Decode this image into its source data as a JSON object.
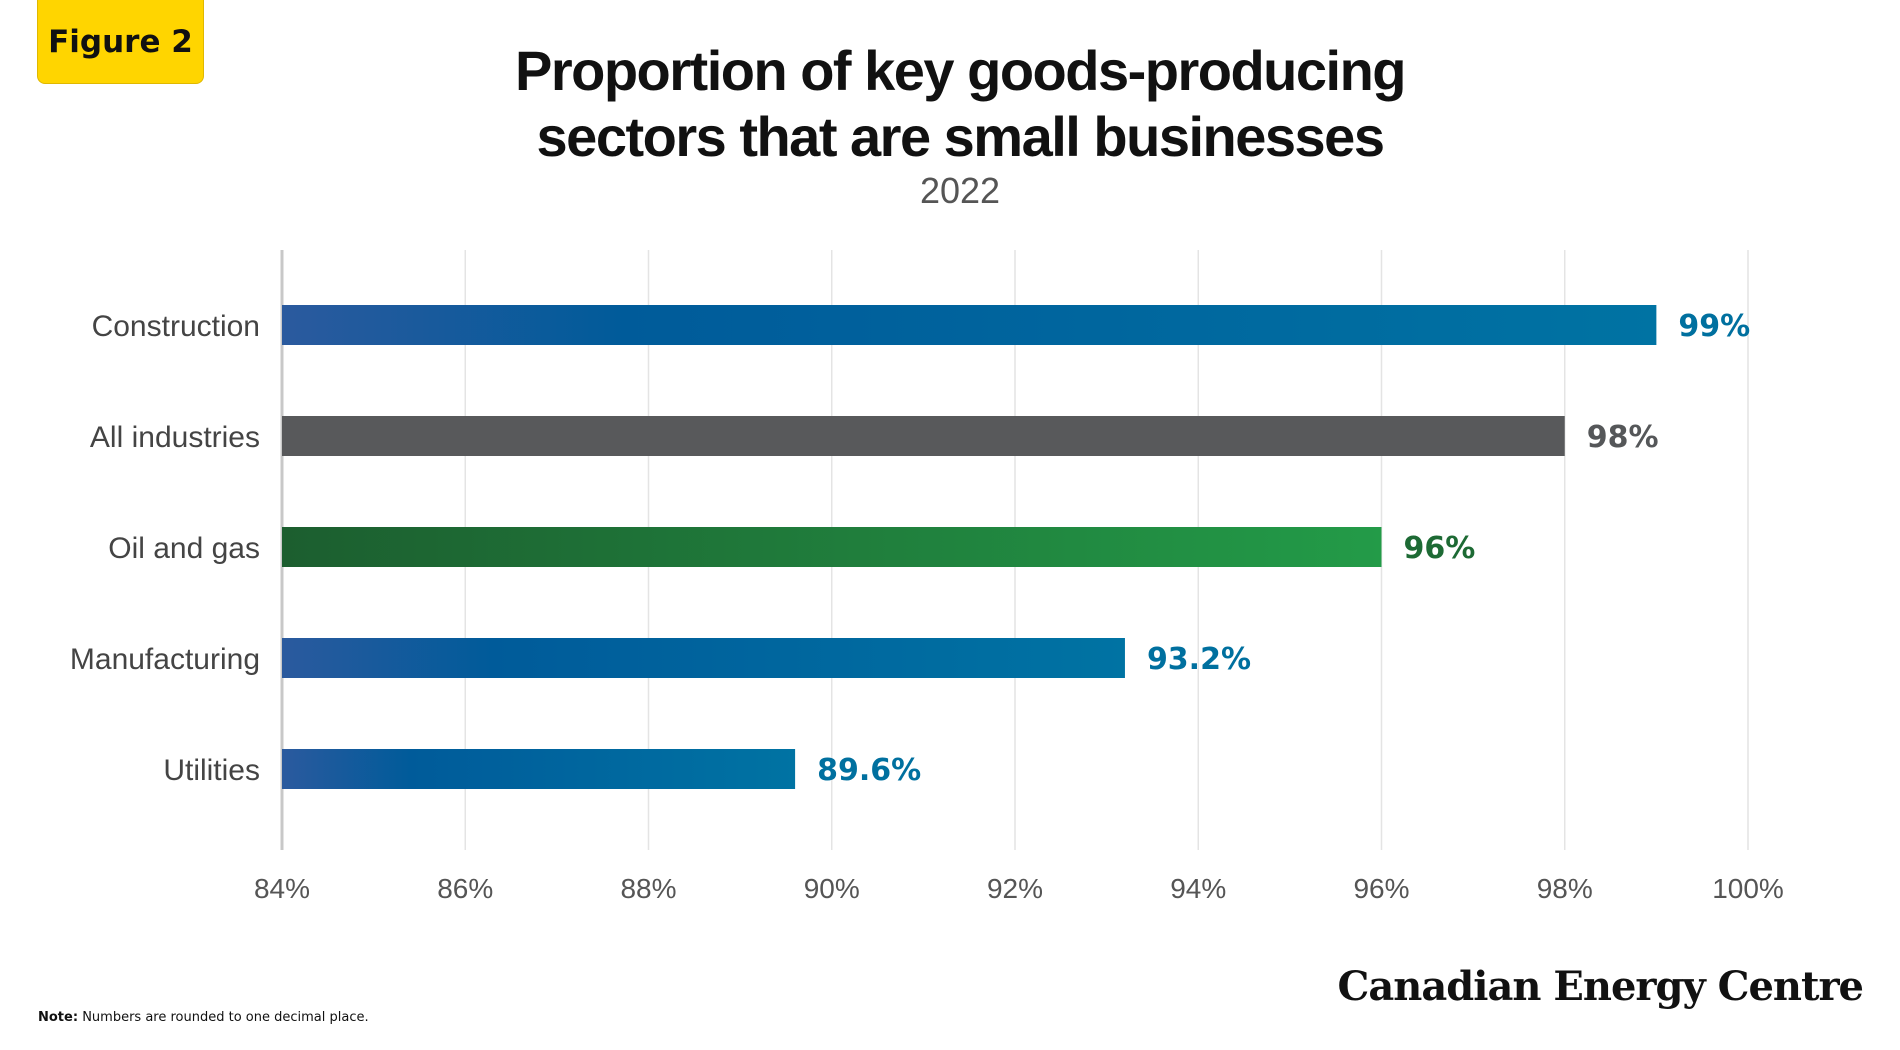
{
  "badge": "Figure 2",
  "title_line1": "Proportion of key goods-producing",
  "title_line2": "sectors that are small businesses",
  "subtitle": "2022",
  "note_label": "Note:",
  "note_text": "Numbers are rounded to one decimal place.",
  "brand": "Canadian Energy Centre",
  "chart_data": {
    "type": "bar",
    "orientation": "horizontal",
    "title": "Proportion of key goods-producing sectors that are small businesses",
    "subtitle": "2022",
    "categories": [
      "Construction",
      "All industries",
      "Oil and gas",
      "Manufacturing",
      "Utilities"
    ],
    "values": [
      99,
      98,
      96,
      93.2,
      89.6
    ],
    "value_labels": [
      "99%",
      "98%",
      "96%",
      "93.2%",
      "89.6%"
    ],
    "bar_colors": [
      "blue-gradient",
      "gray",
      "green-gradient",
      "blue-gradient",
      "blue-gradient"
    ],
    "label_colors": [
      "#00709f",
      "#555759",
      "#1d6a34",
      "#00709f",
      "#00709f"
    ],
    "xlim": [
      84,
      100
    ],
    "xticks": [
      84,
      86,
      88,
      90,
      92,
      94,
      96,
      98,
      100
    ],
    "xtick_labels": [
      "84%",
      "86%",
      "88%",
      "90%",
      "92%",
      "94%",
      "96%",
      "98%",
      "100%"
    ],
    "xlabel": "",
    "ylabel": "",
    "grid": "vertical",
    "legend": "none",
    "colors": {
      "blue_start": "#2b5a9e",
      "blue_mid": "#005b9a",
      "blue_end": "#0073a3",
      "gray": "#58595b",
      "green_start": "#1c5e2f",
      "green_end": "#239b48",
      "grid": "#e4e4e4",
      "axis": "#c8c8c8",
      "tick_text": "#555555",
      "category_text": "#444444"
    }
  }
}
